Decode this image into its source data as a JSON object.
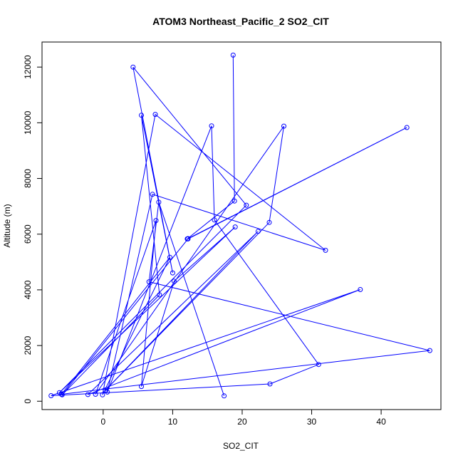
{
  "chart_data": {
    "type": "line",
    "title": "ATOM3 Northeast_Pacific_2 SO2_CIT",
    "xlabel": "SO2_CIT",
    "ylabel": "Altitude (m)",
    "xlim": [
      -8.8,
      48.6
    ],
    "ylim": [
      -300,
      12900
    ],
    "xticks": [
      0,
      10,
      20,
      30,
      40
    ],
    "yticks": [
      0,
      2000,
      4000,
      6000,
      8000,
      10000,
      12000
    ],
    "grid": false,
    "legend": "none",
    "series": [
      {
        "color": "#0000ff",
        "points": [
          [
            18.7,
            12430
          ],
          [
            18.9,
            7190
          ],
          [
            12.1,
            5830
          ],
          [
            12.2,
            5840
          ],
          [
            43.7,
            9830
          ],
          [
            12.2,
            5830
          ],
          [
            -5.9,
            230
          ],
          [
            8.1,
            3820
          ],
          [
            5.5,
            10270
          ],
          [
            10.0,
            4610
          ],
          [
            4.3,
            12000
          ],
          [
            20.6,
            7040
          ],
          [
            -6.3,
            310
          ],
          [
            19.0,
            6260
          ],
          [
            10.2,
            4310
          ],
          [
            5.5,
            530
          ],
          [
            7.6,
            6490
          ],
          [
            -1.1,
            250
          ],
          [
            26.0,
            9880
          ],
          [
            23.9,
            6420
          ],
          [
            0.3,
            390
          ],
          [
            22.3,
            6100
          ],
          [
            -2.2,
            240
          ],
          [
            37.0,
            4010
          ],
          [
            -7.5,
            200
          ],
          [
            24.0,
            620
          ],
          [
            31.0,
            1320
          ],
          [
            16.0,
            6510
          ],
          [
            15.6,
            9890
          ],
          [
            0.6,
            330
          ],
          [
            7.1,
            7430
          ],
          [
            32.0,
            5420
          ],
          [
            7.5,
            10300
          ],
          [
            -0.1,
            230
          ],
          [
            9.6,
            5170
          ],
          [
            -6.0,
            250
          ],
          [
            47.0,
            1820
          ],
          [
            6.6,
            4290
          ],
          [
            8.0,
            7150
          ],
          [
            17.4,
            190
          ]
        ]
      }
    ]
  }
}
